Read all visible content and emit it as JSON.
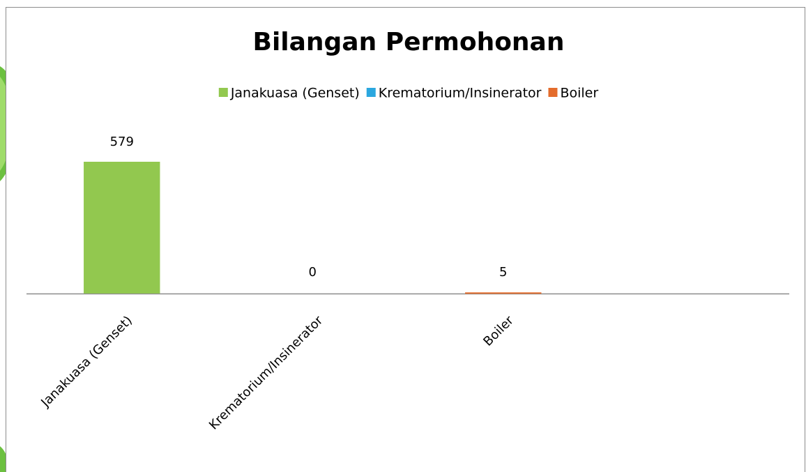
{
  "chart_data": {
    "type": "bar",
    "title": "Bilangan Permohonan",
    "categories": [
      "Janakuasa (Genset)",
      "Krematorium/Insinerator",
      "Boiler",
      null
    ],
    "series": [
      {
        "name": "Janakuasa (Genset)",
        "color": "#92c84f",
        "values": [
          579,
          null,
          null,
          null
        ]
      },
      {
        "name": "Krematorium/Insinerator",
        "color": "#2ba7df",
        "values": [
          null,
          0,
          null,
          null
        ]
      },
      {
        "name": "Boiler",
        "color": "#e46c2c",
        "values": [
          null,
          null,
          5,
          null
        ]
      }
    ],
    "legend": "top"
  }
}
